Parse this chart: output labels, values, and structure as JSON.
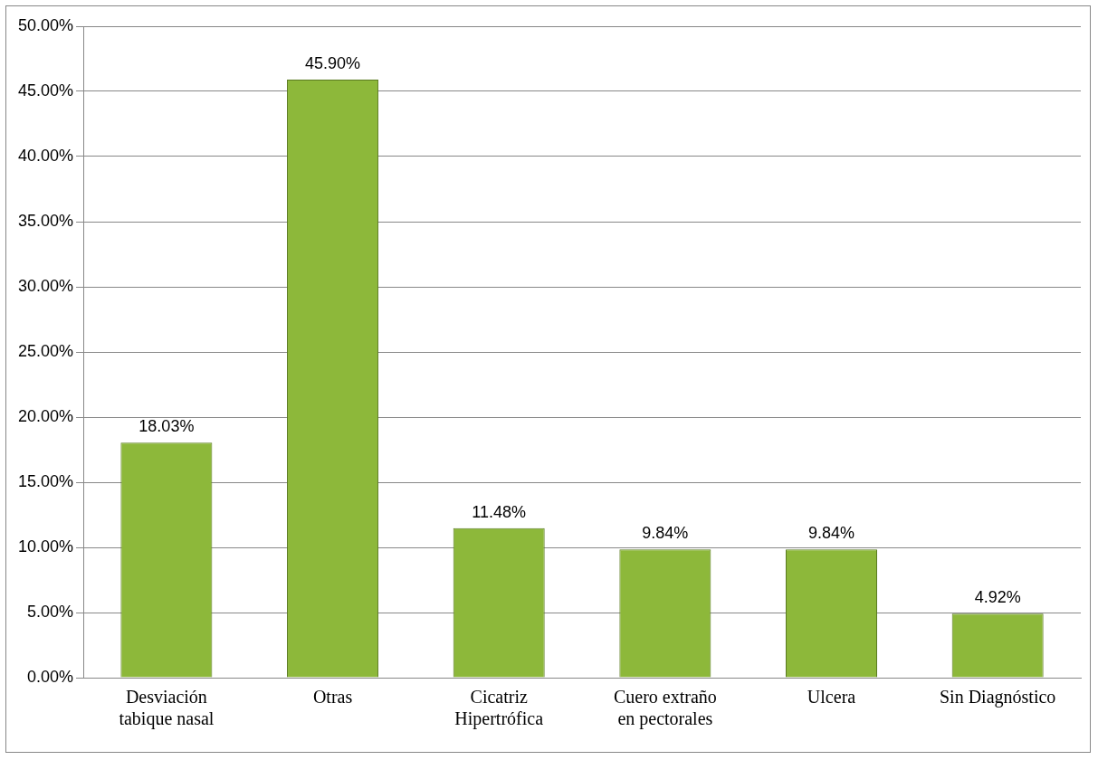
{
  "chart_data": {
    "type": "bar",
    "categories": [
      "Desviación tabique nasal",
      "Otras",
      "Cicatriz Hipertrófica",
      "Cuero extraño en pectorales",
      "Ulcera",
      "Sin Diagnóstico"
    ],
    "values": [
      18.03,
      45.9,
      11.48,
      9.84,
      9.84,
      4.92
    ],
    "value_labels": [
      "18.03%",
      "45.90%",
      "11.48%",
      "9.84%",
      "9.84%",
      "4.92%"
    ],
    "color": "#8db83a",
    "ylim": [
      0,
      50
    ],
    "yticks": [
      {
        "value": 0,
        "label": "0.00%"
      },
      {
        "value": 5,
        "label": "5.00%"
      },
      {
        "value": 10,
        "label": "10.00%"
      },
      {
        "value": 15,
        "label": "15.00%"
      },
      {
        "value": 20,
        "label": "20.00%"
      },
      {
        "value": 25,
        "label": "25.00%"
      },
      {
        "value": 30,
        "label": "30.00%"
      },
      {
        "value": 35,
        "label": "35.00%"
      },
      {
        "value": 40,
        "label": "40.00%"
      },
      {
        "value": 45,
        "label": "45.00%"
      },
      {
        "value": 50,
        "label": "50.00%"
      }
    ],
    "grid": "y",
    "legend": false
  }
}
